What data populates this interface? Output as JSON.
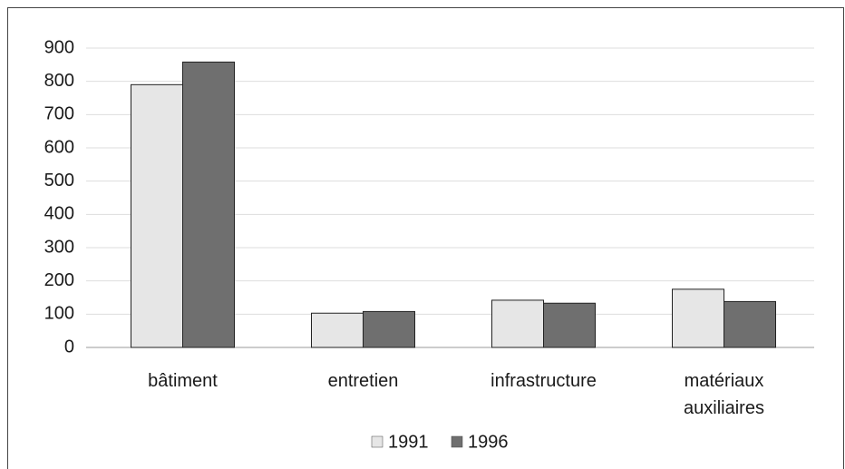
{
  "chart_data": {
    "type": "bar",
    "categories": [
      "bâtiment",
      "entretien",
      "infrastructure",
      "matériaux auxiliaires"
    ],
    "series": [
      {
        "name": "1991",
        "color": "#e6e6e6",
        "values": [
          790,
          103,
          142,
          175
        ]
      },
      {
        "name": "1996",
        "color": "#6f6f6f",
        "values": [
          858,
          108,
          133,
          138
        ]
      }
    ],
    "ylim": [
      0,
      900
    ],
    "yticks": [
      0,
      100,
      200,
      300,
      400,
      500,
      600,
      700,
      800,
      900
    ],
    "grid": true,
    "legend": "bottom"
  }
}
